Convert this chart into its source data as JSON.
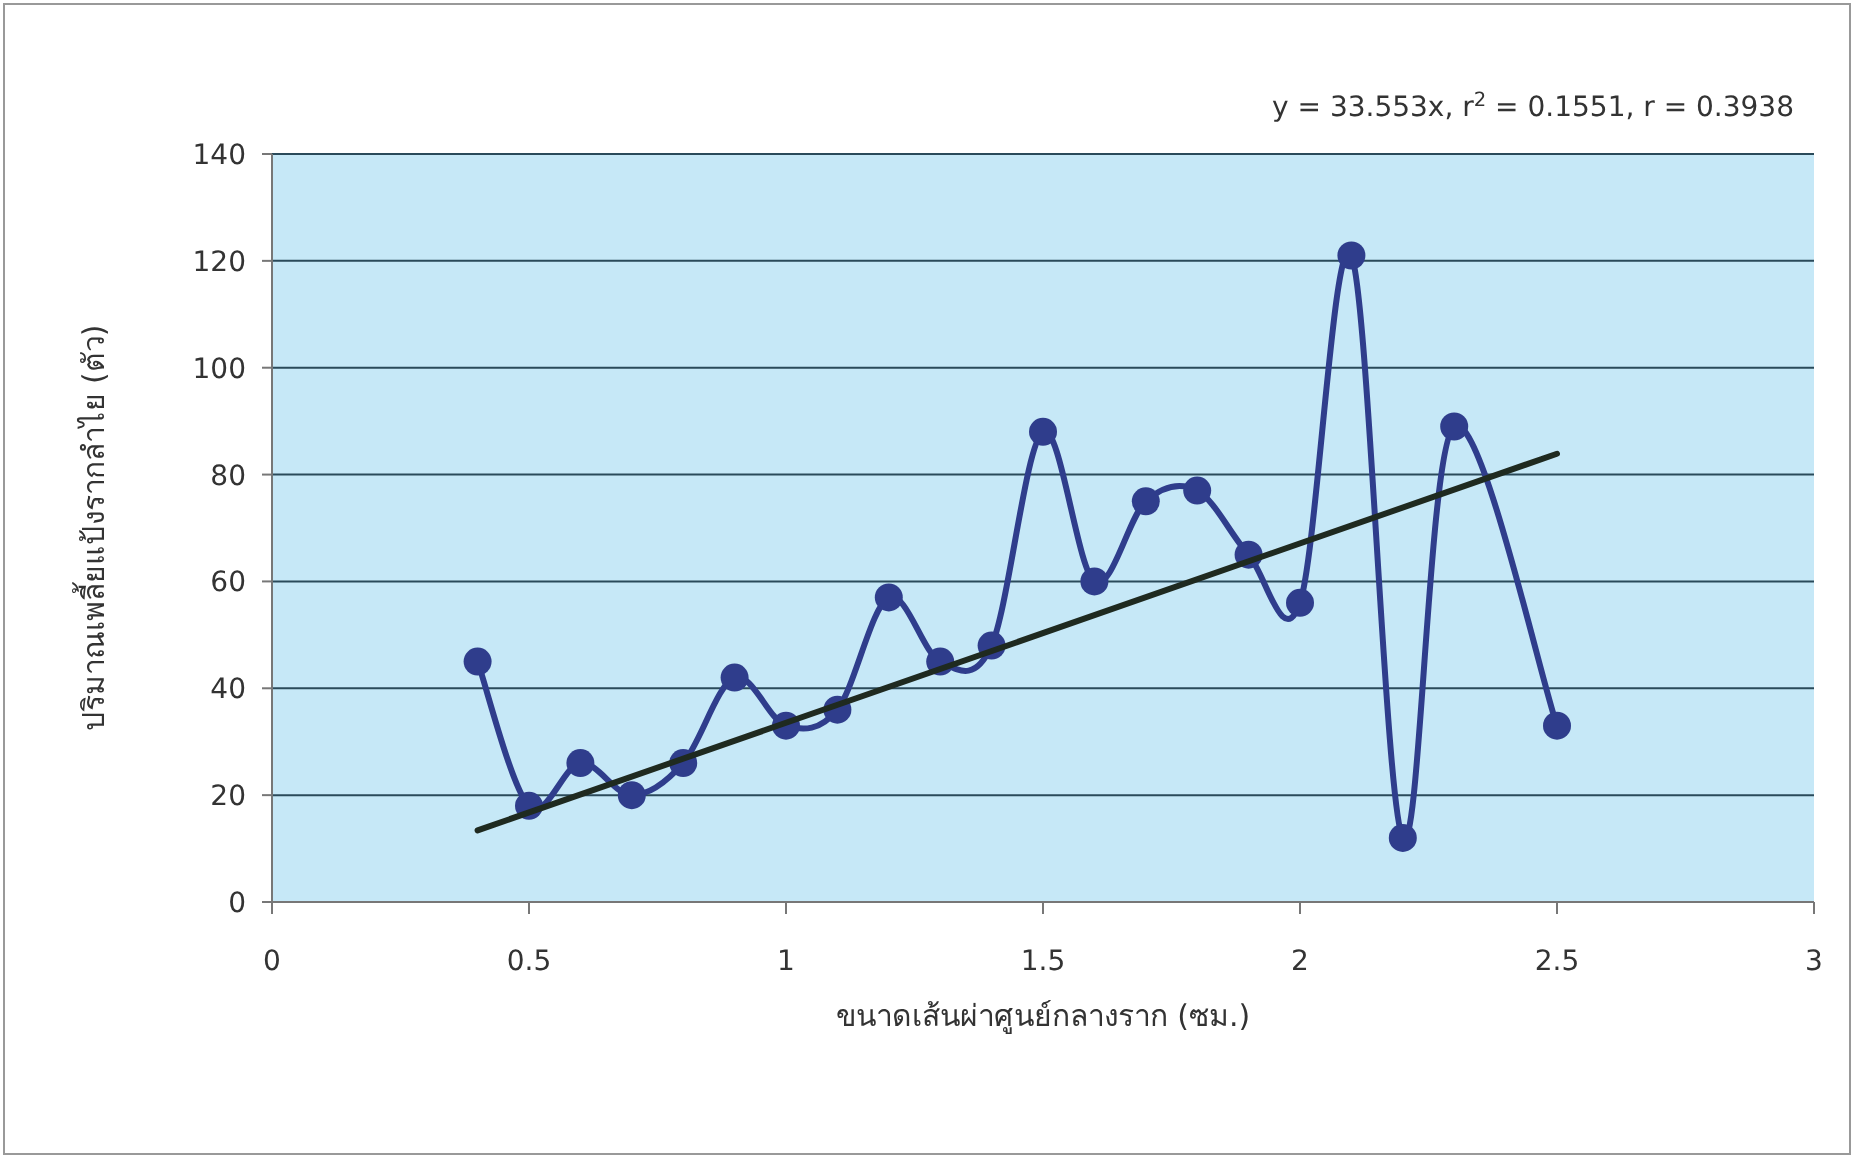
{
  "chart_data": {
    "type": "line",
    "xlabel": "ขนาดเส้นผ่าศูนย์กลางราก (ซม.)",
    "ylabel": "ปริมาณเพลี้ยแป้งรากลำไย (ตัว)",
    "annotations": [
      "y = 33.553x, r$^{2}$ = 0.1551, r = 0.3938"
    ],
    "series": [
      {
        "color": "#2f3d8c",
        "marker": "circle",
        "x": [
          0.4,
          0.5,
          0.6,
          0.7,
          0.8,
          0.9,
          1.0,
          1.1,
          1.2,
          1.3,
          1.4,
          1.5,
          1.6,
          1.7,
          1.8,
          1.9,
          2.0,
          2.1,
          2.2,
          2.3,
          2.5
        ],
        "values": [
          45,
          18,
          26,
          20,
          26,
          42,
          33,
          36,
          57,
          45,
          48,
          88,
          60,
          75,
          77,
          65,
          56,
          121,
          12,
          89,
          33
        ]
      },
      {
        "color": "#1f2a20",
        "marker": "none",
        "x": [
          0.4,
          2.5
        ],
        "values": [
          13.4,
          83.9
        ]
      }
    ],
    "xlim": [
      0,
      3
    ],
    "xticks": [
      0,
      0.5,
      1,
      1.5,
      2,
      2.5,
      3
    ],
    "ylim": [
      0,
      140
    ],
    "yticks": [
      0,
      20,
      40,
      60,
      80,
      100,
      120,
      140
    ],
    "grid": "y"
  }
}
